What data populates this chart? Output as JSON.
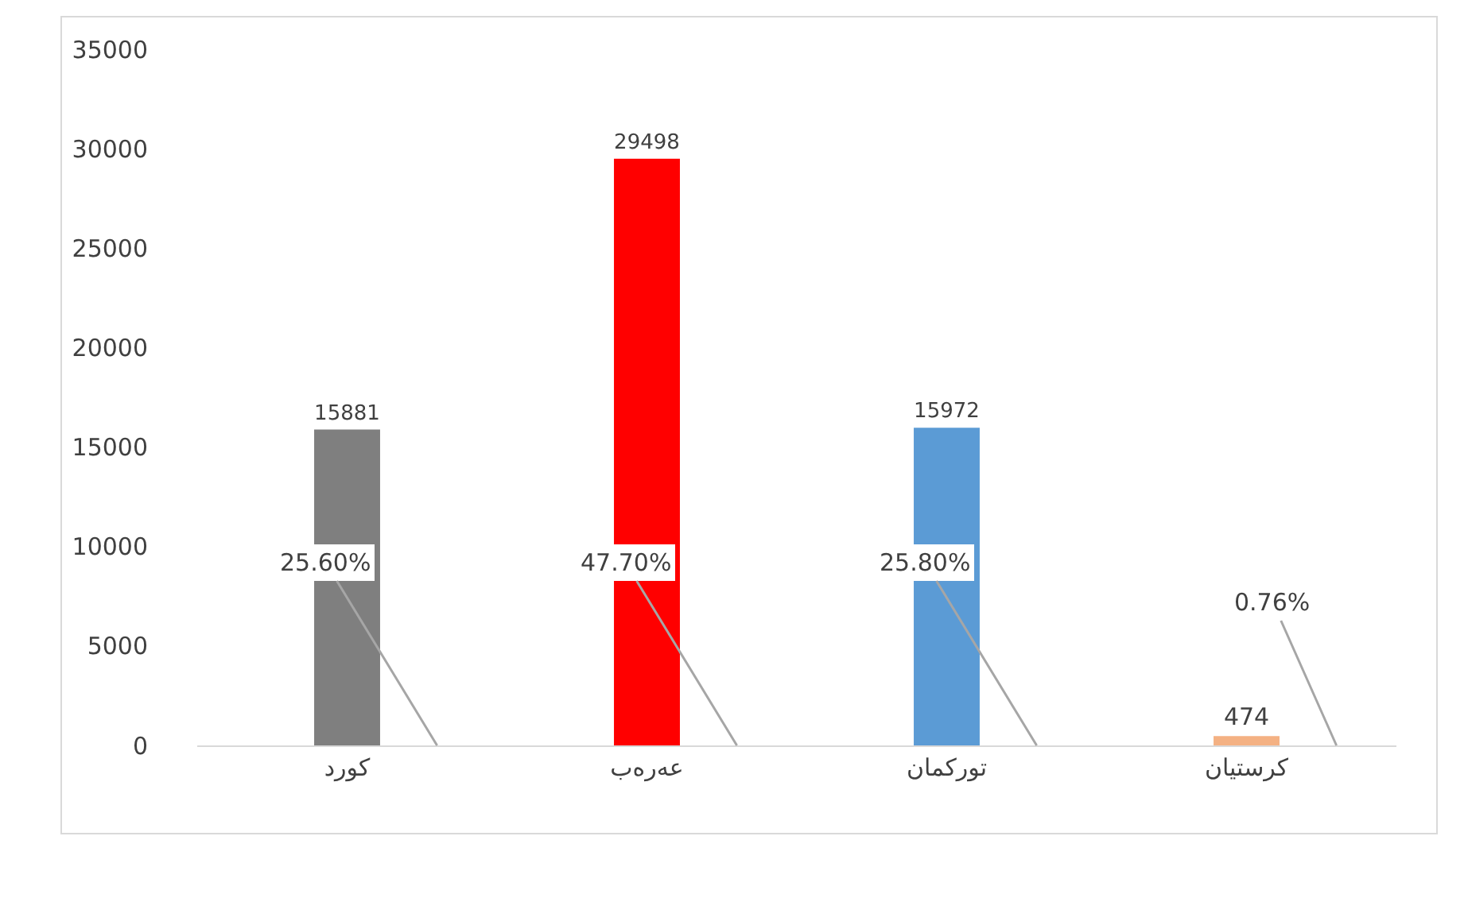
{
  "chart_data": {
    "type": "bar",
    "categories": [
      "کورد",
      "عەرەب",
      "تورکمان",
      "کرستیان"
    ],
    "values": [
      15881,
      29498,
      15972,
      474
    ],
    "colors": [
      "#7f7f7f",
      "#ff0000",
      "#5b9bd5",
      "#f4b183"
    ],
    "ylim": [
      0,
      35000
    ],
    "yticks": [
      0,
      5000,
      10000,
      15000,
      20000,
      25000,
      30000,
      35000
    ],
    "grid": false,
    "legend": false,
    "data_labels": true,
    "annotations": [
      "25.60%",
      "47.70%",
      "25.80%",
      "0.76%"
    ]
  }
}
